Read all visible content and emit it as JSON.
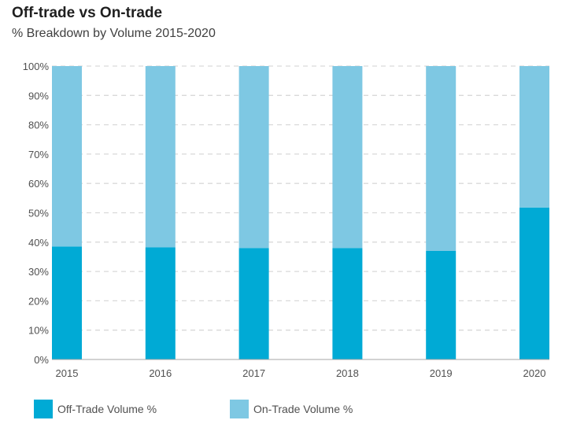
{
  "title": "Off-trade vs On-trade",
  "subtitle": "% Breakdown by Volume 2015-2020",
  "colors": {
    "off_trade": "#00aad5",
    "on_trade": "#7ec8e3",
    "grid": "#d9d9d9",
    "axis": "#a6a6a6"
  },
  "chart_data": {
    "type": "bar",
    "stacked": true,
    "categories": [
      "2015",
      "2016",
      "2017",
      "2018",
      "2019",
      "2020"
    ],
    "series": [
      {
        "name": "Off-Trade Volume %",
        "values": [
          38.5,
          38.2,
          38.0,
          38.0,
          37.0,
          51.8
        ]
      },
      {
        "name": "On-Trade Volume %",
        "values": [
          61.5,
          61.8,
          62.0,
          62.0,
          63.0,
          48.2
        ]
      }
    ],
    "ylim": [
      0,
      100
    ],
    "yticks": [
      "0%",
      "10%",
      "20%",
      "30%",
      "40%",
      "50%",
      "60%",
      "70%",
      "80%",
      "90%",
      "100%"
    ],
    "grid": true,
    "legend": "bottom-left"
  }
}
